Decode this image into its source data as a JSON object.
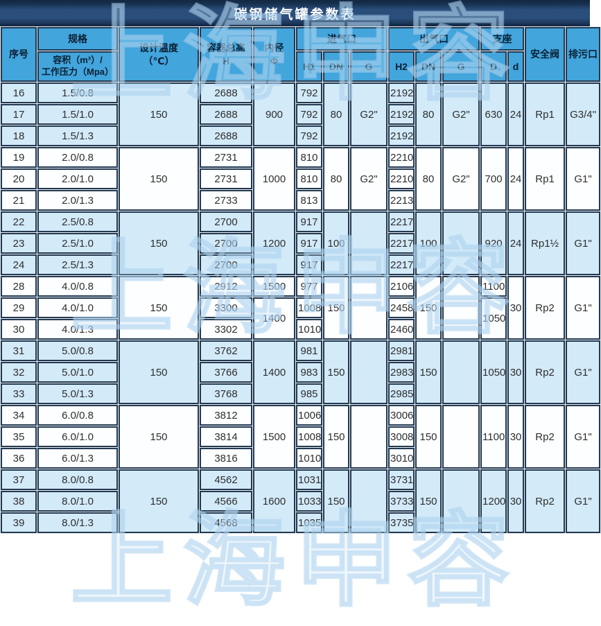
{
  "title": "碳钢储气罐参数表",
  "watermark": "上海申容",
  "colors": {
    "title_bg": "#2a4d79",
    "header_bg": "#42a5dc",
    "border": "#223850",
    "group_blue": "#d3eaf8",
    "group_white": "#fdfeff"
  },
  "header": {
    "no": "序号",
    "spec": "规格",
    "spec_sub": "容积（m³）/\n工作压力（Mpa）",
    "temp": "设计温度\n（℃）",
    "height": "容器总高\nH",
    "dia": "内径\nΦ",
    "inlet": "进气口",
    "outlet": "出气口",
    "support": "支座",
    "h1": "H1",
    "dn_in": "DN",
    "g_in": "G",
    "h2": "H2",
    "dn_out": "DN",
    "g_out": "G",
    "d_outer": "D",
    "d_bolt": "d",
    "valve": "安全阀",
    "drain": "排污口"
  },
  "groups": [
    {
      "shade": "blue",
      "temp": "150",
      "phi": [
        {
          "rows": 3,
          "v": "900"
        }
      ],
      "dn_in": "80",
      "g_in": "G2\"",
      "dn_out": "80",
      "g_out": "G2\"",
      "d_outer": [
        {
          "rows": 3,
          "v": "630"
        }
      ],
      "d_bolt": "24",
      "valve": "Rp1",
      "drain": "G3/4\"",
      "rows": [
        {
          "no": "16",
          "spec": "1.5/0.8",
          "h": "2688",
          "h1": "792",
          "h2": "2192"
        },
        {
          "no": "17",
          "spec": "1.5/1.0",
          "h": "2688",
          "h1": "792",
          "h2": "2192"
        },
        {
          "no": "18",
          "spec": "1.5/1.3",
          "h": "2688",
          "h1": "792",
          "h2": "2192"
        }
      ]
    },
    {
      "shade": "white",
      "temp": "150",
      "phi": [
        {
          "rows": 3,
          "v": "1000"
        }
      ],
      "dn_in": "80",
      "g_in": "G2\"",
      "dn_out": "80",
      "g_out": "G2\"",
      "d_outer": [
        {
          "rows": 3,
          "v": "700"
        }
      ],
      "d_bolt": "24",
      "valve": "Rp1",
      "drain": "G1\"",
      "rows": [
        {
          "no": "19",
          "spec": "2.0/0.8",
          "h": "2731",
          "h1": "810",
          "h2": "2210"
        },
        {
          "no": "20",
          "spec": "2.0/1.0",
          "h": "2731",
          "h1": "810",
          "h2": "2210"
        },
        {
          "no": "21",
          "spec": "2.0/1.3",
          "h": "2733",
          "h1": "813",
          "h2": "2213"
        }
      ]
    },
    {
      "shade": "blue",
      "temp": "150",
      "phi": [
        {
          "rows": 3,
          "v": "1200"
        }
      ],
      "dn_in": "100",
      "g_in": "",
      "dn_out": "100",
      "g_out": "",
      "d_outer": [
        {
          "rows": 3,
          "v": "920"
        }
      ],
      "d_bolt": "24",
      "valve": "Rp1½",
      "drain": "G1\"",
      "rows": [
        {
          "no": "22",
          "spec": "2.5/0.8",
          "h": "2700",
          "h1": "917",
          "h2": "2217"
        },
        {
          "no": "23",
          "spec": "2.5/1.0",
          "h": "2700",
          "h1": "917",
          "h2": "2217"
        },
        {
          "no": "24",
          "spec": "2.5/1.3",
          "h": "2700",
          "h1": "917",
          "h2": "2217"
        }
      ]
    },
    {
      "shade": "white",
      "temp": "150",
      "phi": [
        {
          "rows": 1,
          "v": "1500"
        },
        {
          "rows": 2,
          "v": "1400"
        }
      ],
      "dn_in": "150",
      "g_in": "",
      "dn_out": "150",
      "g_out": "",
      "d_outer": [
        {
          "rows": 1,
          "v": "1100"
        },
        {
          "rows": 2,
          "v": "1050"
        }
      ],
      "d_bolt": "30",
      "valve": "Rp2",
      "drain": "G1\"",
      "rows": [
        {
          "no": "28",
          "spec": "4.0/0.8",
          "h": "2912",
          "h1": "977",
          "h2": "2106"
        },
        {
          "no": "29",
          "spec": "4.0/1.0",
          "h": "3300",
          "h1": "1008",
          "h2": "2458"
        },
        {
          "no": "30",
          "spec": "4.0/1.3",
          "h": "3302",
          "h1": "1010",
          "h2": "2460"
        }
      ]
    },
    {
      "shade": "blue",
      "temp": "150",
      "phi": [
        {
          "rows": 3,
          "v": "1400"
        }
      ],
      "dn_in": "150",
      "g_in": "",
      "dn_out": "150",
      "g_out": "",
      "d_outer": [
        {
          "rows": 3,
          "v": "1050"
        }
      ],
      "d_bolt": "30",
      "valve": "Rp2",
      "drain": "G1\"",
      "rows": [
        {
          "no": "31",
          "spec": "5.0/0.8",
          "h": "3762",
          "h1": "981",
          "h2": "2981"
        },
        {
          "no": "32",
          "spec": "5.0/1.0",
          "h": "3766",
          "h1": "983",
          "h2": "2983"
        },
        {
          "no": "33",
          "spec": "5.0/1.3",
          "h": "3768",
          "h1": "985",
          "h2": "2985"
        }
      ]
    },
    {
      "shade": "white",
      "temp": "150",
      "phi": [
        {
          "rows": 3,
          "v": "1500"
        }
      ],
      "dn_in": "150",
      "g_in": "",
      "dn_out": "150",
      "g_out": "",
      "d_outer": [
        {
          "rows": 3,
          "v": "1100"
        }
      ],
      "d_bolt": "30",
      "valve": "Rp2",
      "drain": "G1\"",
      "rows": [
        {
          "no": "34",
          "spec": "6.0/0.8",
          "h": "3812",
          "h1": "1006",
          "h2": "3006"
        },
        {
          "no": "35",
          "spec": "6.0/1.0",
          "h": "3814",
          "h1": "1008",
          "h2": "3008"
        },
        {
          "no": "36",
          "spec": "6.0/1.3",
          "h": "3816",
          "h1": "1010",
          "h2": "3010"
        }
      ]
    },
    {
      "shade": "blue",
      "temp": "150",
      "phi": [
        {
          "rows": 3,
          "v": "1600"
        }
      ],
      "dn_in": "150",
      "g_in": "",
      "dn_out": "150",
      "g_out": "",
      "d_outer": [
        {
          "rows": 3,
          "v": "1200"
        }
      ],
      "d_bolt": "30",
      "valve": "Rp2",
      "drain": "G1\"",
      "rows": [
        {
          "no": "37",
          "spec": "8.0/0.8",
          "h": "4562",
          "h1": "1031",
          "h2": "3731"
        },
        {
          "no": "38",
          "spec": "8.0/1.0",
          "h": "4566",
          "h1": "1033",
          "h2": "3733"
        },
        {
          "no": "39",
          "spec": "8.0/1.3",
          "h": "4568",
          "h1": "1035",
          "h2": "3735"
        }
      ]
    }
  ]
}
